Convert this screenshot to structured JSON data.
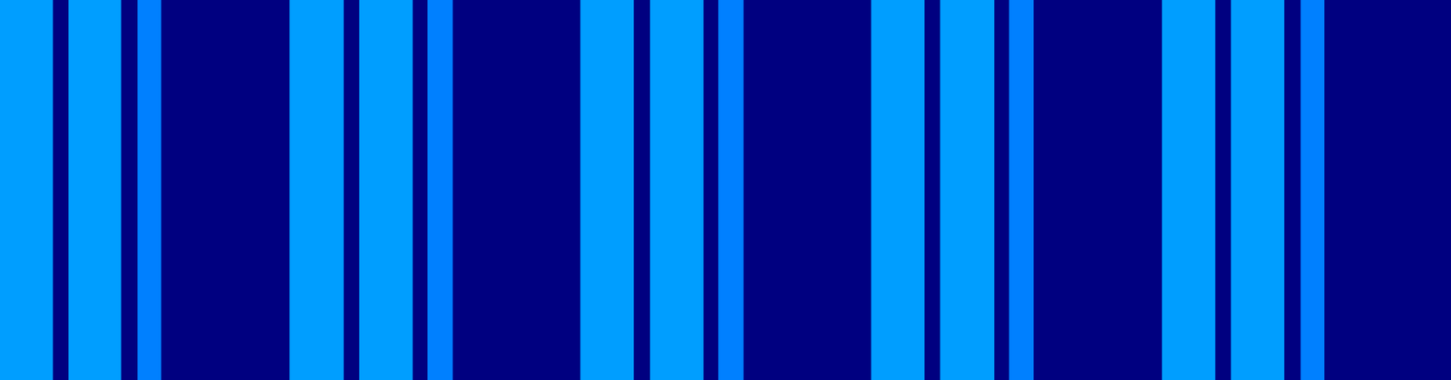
{
  "chart_data": {
    "type": "heatmap",
    "tick_labels": false,
    "grid": false,
    "xlim": [
      0,
      1956
    ],
    "x_edges": [
      0,
      71,
      92,
      163,
      185,
      217,
      390,
      463,
      484,
      556,
      576,
      610,
      782,
      854,
      876,
      948,
      968,
      1002,
      1174,
      1246,
      1267,
      1340,
      1360,
      1393,
      1566,
      1638,
      1659,
      1731,
      1753,
      1785,
      1956
    ],
    "values": [
      0.28,
      0,
      0.28,
      0,
      0.25,
      0,
      0.28,
      0,
      0.28,
      0,
      0.25,
      0,
      0.28,
      0,
      0.28,
      0,
      0.25,
      0,
      0.28,
      0,
      0.28,
      0,
      0.25,
      0,
      0.28,
      0,
      0.28,
      0,
      0.25,
      0
    ],
    "clim": [
      0,
      1
    ]
  }
}
